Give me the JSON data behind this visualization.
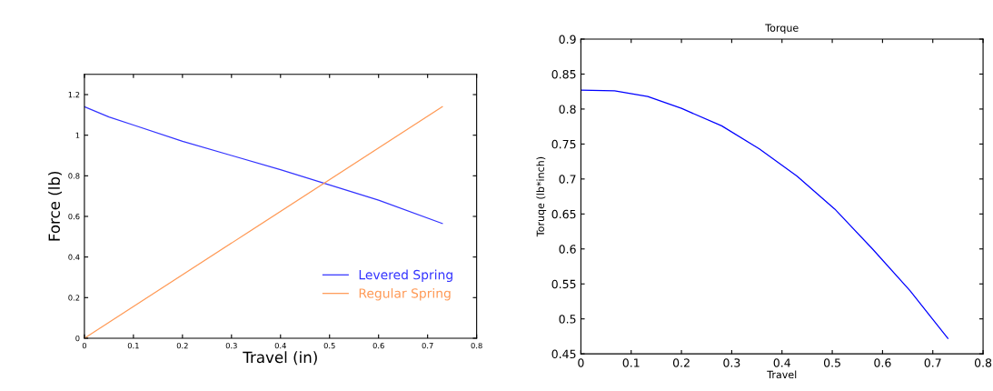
{
  "chart_data": [
    {
      "type": "line",
      "xlabel": "Travel (in)",
      "ylabel": "Force (lb)",
      "xlim": [
        0,
        0.8
      ],
      "ylim": [
        0,
        1.3
      ],
      "xticks": [
        0,
        0.1,
        0.2,
        0.3,
        0.4,
        0.5,
        0.6,
        0.7,
        0.8
      ],
      "yticks": [
        0,
        0.2,
        0.4,
        0.6,
        0.8,
        1,
        1.2
      ],
      "legend": "bottom right",
      "grid": false,
      "line_style": "solid",
      "series": [
        {
          "name": "Levered Spring",
          "color": "#3333ff",
          "x": [
            0,
            0.05,
            0.1,
            0.2,
            0.3,
            0.4,
            0.5,
            0.6,
            0.73
          ],
          "values": [
            1.14,
            1.09,
            1.05,
            0.97,
            0.9,
            0.83,
            0.755,
            0.68,
            0.565
          ]
        },
        {
          "name": "Regular Spring",
          "color": "#ff9955",
          "x": [
            0,
            0.73
          ],
          "values": [
            0,
            1.14
          ]
        }
      ]
    },
    {
      "type": "line",
      "title": "Torque",
      "xlabel": "Travel",
      "ylabel": "Toruqe (lb*inch)",
      "xlim": [
        0,
        0.8
      ],
      "ylim": [
        0.45,
        0.9
      ],
      "xticks": [
        0,
        0.1,
        0.2,
        0.3,
        0.4,
        0.5,
        0.6,
        0.7,
        0.8
      ],
      "yticks": [
        0.45,
        0.5,
        0.55,
        0.6,
        0.65,
        0.7,
        0.75,
        0.8,
        0.85,
        0.9
      ],
      "grid": false,
      "line_style": "solid",
      "series": [
        {
          "color": "#0000ff",
          "x": [
            0,
            0.067,
            0.133,
            0.2,
            0.28,
            0.355,
            0.43,
            0.505,
            0.58,
            0.655,
            0.73
          ],
          "values": [
            0.827,
            0.826,
            0.818,
            0.801,
            0.776,
            0.743,
            0.704,
            0.657,
            0.6,
            0.54,
            0.472
          ]
        }
      ]
    }
  ]
}
